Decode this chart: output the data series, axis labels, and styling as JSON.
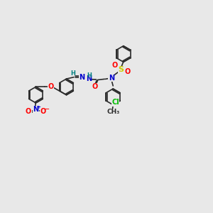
{
  "bg_color": "#e8e8e8",
  "bond_color": "#2a2a2a",
  "atom_colors": {
    "O": "#ff0000",
    "N": "#0000cd",
    "S": "#cccc00",
    "Cl": "#00bb00",
    "H": "#008080",
    "C": "#2a2a2a"
  },
  "bw": 1.2,
  "r": 0.38,
  "figsize": [
    3.0,
    3.0
  ],
  "dpi": 100,
  "xlim": [
    0,
    10
  ],
  "ylim": [
    0,
    10
  ]
}
